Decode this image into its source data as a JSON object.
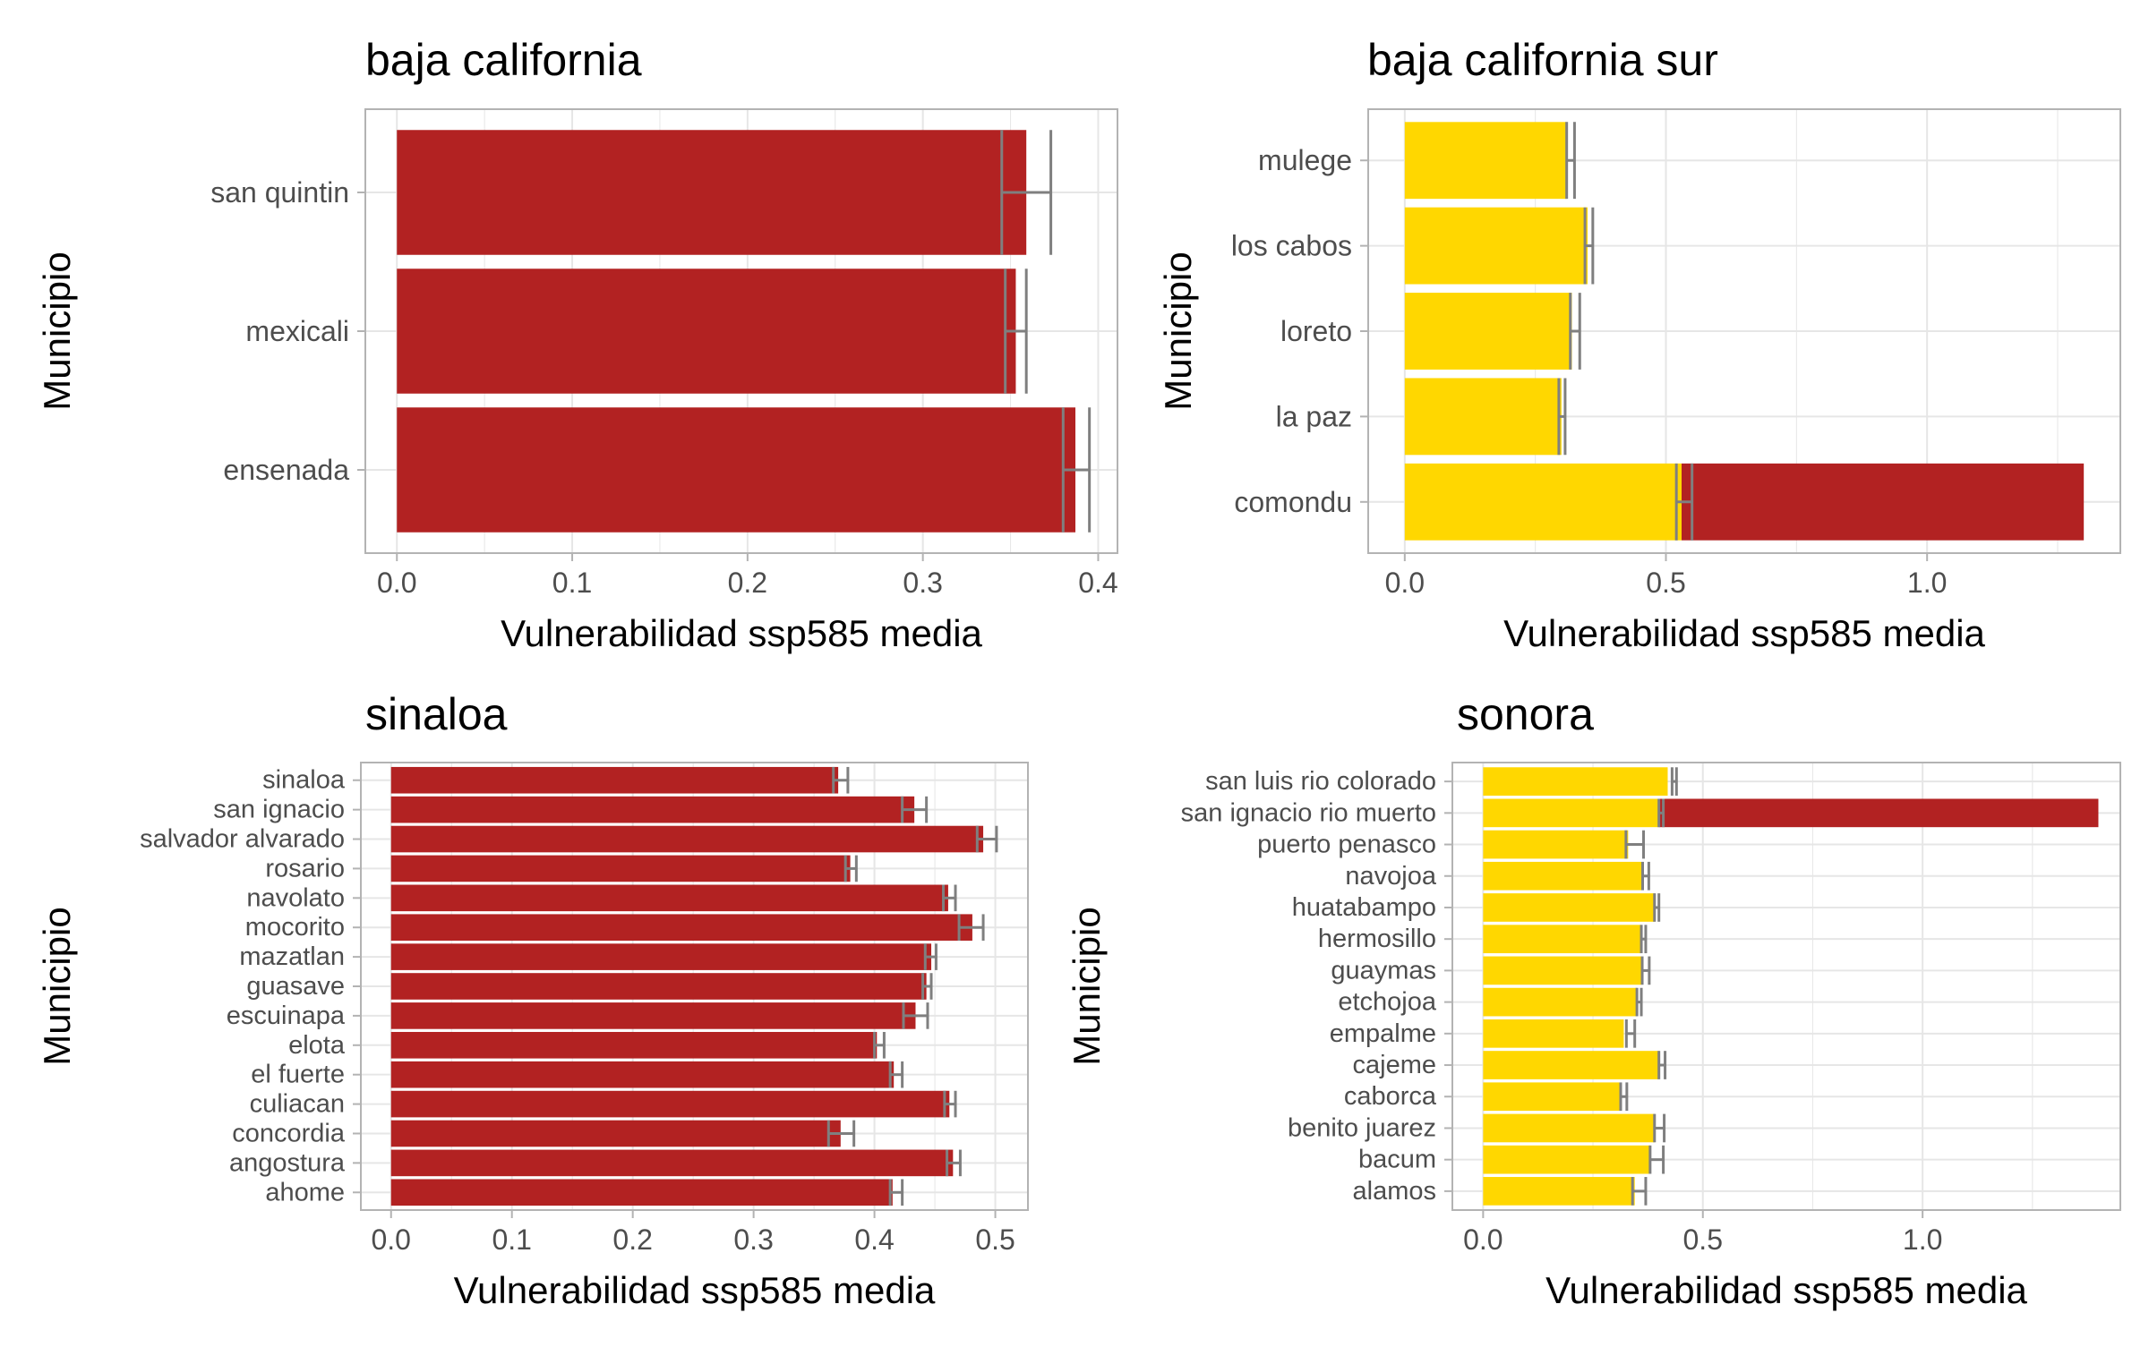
{
  "colors": {
    "red": "#b22222",
    "yellow": "#ffd700",
    "errorbar": "#7f7f7f",
    "grid": "#e6e6e6",
    "border": "#b3b3b3"
  },
  "chart_data": [
    {
      "type": "bar",
      "orientation": "horizontal",
      "title": "baja california",
      "xlabel": "Vulnerabilidad ssp585 media",
      "ylabel": "Municipio",
      "xlim": [
        -0.018,
        0.411
      ],
      "xticks": [
        "0.0",
        "0.1",
        "0.2",
        "0.3",
        "0.4"
      ],
      "grid": true,
      "categories": [
        "ensenada",
        "mexicali",
        "san quintin"
      ],
      "series": [
        {
          "color": "red",
          "values": [
            0.387,
            0.353,
            0.359
          ]
        }
      ],
      "errorbars": [
        {
          "mean": 0.388,
          "lo": 0.38,
          "hi": 0.395
        },
        {
          "mean": 0.353,
          "lo": 0.347,
          "hi": 0.359
        },
        {
          "mean": 0.36,
          "lo": 0.345,
          "hi": 0.373
        }
      ]
    },
    {
      "type": "bar",
      "orientation": "horizontal",
      "title": "baja california sur",
      "xlabel": "Vulnerabilidad ssp585 media",
      "ylabel": "Municipio",
      "xlim": [
        -0.07,
        1.37
      ],
      "xticks": [
        "0.0",
        "0.5",
        "1.0"
      ],
      "grid": true,
      "categories": [
        "comondu",
        "la paz",
        "loreto",
        "los cabos",
        "mulege"
      ],
      "series": [
        {
          "color": "yellow",
          "values": [
            0.53,
            0.3,
            0.32,
            0.35,
            0.31
          ]
        },
        {
          "color": "red",
          "values": [
            0.77,
            0,
            0,
            0,
            0
          ]
        }
      ],
      "errorbars": [
        {
          "mean": 0.535,
          "lo": 0.52,
          "hi": 0.55
        },
        {
          "mean": 0.3,
          "lo": 0.295,
          "hi": 0.307
        },
        {
          "mean": 0.325,
          "lo": 0.317,
          "hi": 0.335
        },
        {
          "mean": 0.352,
          "lo": 0.345,
          "hi": 0.36
        },
        {
          "mean": 0.318,
          "lo": 0.31,
          "hi": 0.325
        }
      ]
    },
    {
      "type": "bar",
      "orientation": "horizontal",
      "title": "sinaloa",
      "xlabel": "Vulnerabilidad ssp585 media",
      "ylabel": "Municipio",
      "xlim": [
        -0.025,
        0.527
      ],
      "xticks": [
        "0.0",
        "0.1",
        "0.2",
        "0.3",
        "0.4",
        "0.5"
      ],
      "grid": true,
      "categories": [
        "ahome",
        "angostura",
        "concordia",
        "culiacan",
        "el fuerte",
        "elota",
        "escuinapa",
        "guasave",
        "mazatlan",
        "mocorito",
        "navolato",
        "rosario",
        "salvador alvarado",
        "san ignacio",
        "sinaloa"
      ],
      "series": [
        {
          "color": "red",
          "values": [
            0.415,
            0.465,
            0.372,
            0.462,
            0.416,
            0.402,
            0.434,
            0.443,
            0.447,
            0.481,
            0.461,
            0.38,
            0.49,
            0.433,
            0.37
          ]
        }
      ],
      "errorbars": [
        {
          "mean": 0.418,
          "lo": 0.413,
          "hi": 0.423
        },
        {
          "mean": 0.465,
          "lo": 0.46,
          "hi": 0.471
        },
        {
          "mean": 0.372,
          "lo": 0.362,
          "hi": 0.383
        },
        {
          "mean": 0.462,
          "lo": 0.458,
          "hi": 0.467
        },
        {
          "mean": 0.418,
          "lo": 0.413,
          "hi": 0.423
        },
        {
          "mean": 0.404,
          "lo": 0.4,
          "hi": 0.408
        },
        {
          "mean": 0.434,
          "lo": 0.424,
          "hi": 0.444
        },
        {
          "mean": 0.443,
          "lo": 0.44,
          "hi": 0.447
        },
        {
          "mean": 0.447,
          "lo": 0.442,
          "hi": 0.451
        },
        {
          "mean": 0.48,
          "lo": 0.47,
          "hi": 0.49
        },
        {
          "mean": 0.462,
          "lo": 0.457,
          "hi": 0.467
        },
        {
          "mean": 0.38,
          "lo": 0.376,
          "hi": 0.385
        },
        {
          "mean": 0.493,
          "lo": 0.485,
          "hi": 0.501
        },
        {
          "mean": 0.433,
          "lo": 0.423,
          "hi": 0.443
        },
        {
          "mean": 0.372,
          "lo": 0.366,
          "hi": 0.378
        }
      ]
    },
    {
      "type": "bar",
      "orientation": "horizontal",
      "title": "sonora",
      "xlabel": "Vulnerabilidad ssp585 media",
      "ylabel": "Municipio",
      "xlim": [
        -0.07,
        1.45
      ],
      "xticks": [
        "0.0",
        "0.5",
        "1.0"
      ],
      "grid": true,
      "categories": [
        "alamos",
        "bacum",
        "benito juarez",
        "caborca",
        "cajeme",
        "empalme",
        "etchojoa",
        "guaymas",
        "hermosillo",
        "huatabampo",
        "navojoa",
        "puerto penasco",
        "san ignacio rio muerto",
        "san luis rio colorado"
      ],
      "series": [
        {
          "color": "yellow",
          "values": [
            0.345,
            0.38,
            0.39,
            0.31,
            0.4,
            0.32,
            0.35,
            0.36,
            0.36,
            0.39,
            0.36,
            0.33,
            0.4,
            0.42
          ]
        },
        {
          "color": "red",
          "values": [
            0,
            0,
            0,
            0,
            0,
            0,
            0,
            0,
            0,
            0,
            0,
            0,
            1.0,
            0
          ]
        }
      ],
      "errorbars": [
        {
          "mean": 0.355,
          "lo": 0.34,
          "hi": 0.37
        },
        {
          "mean": 0.395,
          "lo": 0.38,
          "hi": 0.41
        },
        {
          "mean": 0.4,
          "lo": 0.39,
          "hi": 0.412
        },
        {
          "mean": 0.32,
          "lo": 0.313,
          "hi": 0.327
        },
        {
          "mean": 0.407,
          "lo": 0.4,
          "hi": 0.414
        },
        {
          "mean": 0.335,
          "lo": 0.326,
          "hi": 0.345
        },
        {
          "mean": 0.355,
          "lo": 0.35,
          "hi": 0.36
        },
        {
          "mean": 0.37,
          "lo": 0.362,
          "hi": 0.378
        },
        {
          "mean": 0.365,
          "lo": 0.36,
          "hi": 0.37
        },
        {
          "mean": 0.395,
          "lo": 0.39,
          "hi": 0.4
        },
        {
          "mean": 0.37,
          "lo": 0.363,
          "hi": 0.377
        },
        {
          "mean": 0.345,
          "lo": 0.325,
          "hi": 0.365
        },
        {
          "mean": 0.405,
          "lo": 0.4,
          "hi": 0.41
        },
        {
          "mean": 0.435,
          "lo": 0.43,
          "hi": 0.44
        }
      ]
    }
  ]
}
